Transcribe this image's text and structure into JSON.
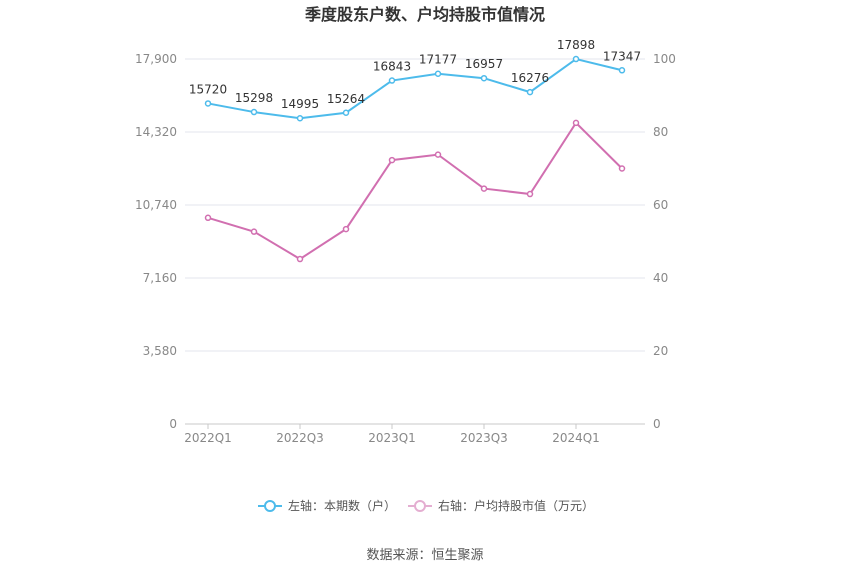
{
  "chart_data": {
    "type": "line",
    "title": "季度股东户数、户均持股市值情况",
    "x": [
      "2022Q1",
      "2022Q2",
      "2022Q3",
      "2022Q4",
      "2023Q1",
      "2023Q2",
      "2023Q3",
      "2023Q4",
      "2024Q1",
      "2024Q2"
    ],
    "x_tick_labels": [
      "2022Q1",
      "2022Q3",
      "2023Q1",
      "2023Q3",
      "2024Q1"
    ],
    "left_axis": {
      "ylim": [
        0,
        17900
      ],
      "ticks": [
        "0",
        "3,580",
        "7,160",
        "10,740",
        "14,320",
        "17,900"
      ]
    },
    "right_axis": {
      "ylim": [
        0,
        100
      ],
      "ticks": [
        "0",
        "20",
        "40",
        "60",
        "80",
        "100"
      ]
    },
    "series": [
      {
        "name": "左轴：本期数（户）",
        "axis": "left",
        "color": "#4dbbeb",
        "values": [
          15720,
          15298,
          14995,
          15264,
          16843,
          17177,
          16957,
          16276,
          17898,
          17347
        ],
        "labels": [
          "15720",
          "15298",
          "14995",
          "15264",
          "16843",
          "17177",
          "16957",
          "16276",
          "17898",
          "17347"
        ]
      },
      {
        "name": "右轴：户均持股市值（万元）",
        "axis": "right",
        "color": "#d16fb0",
        "values": [
          56.5,
          52.7,
          45.2,
          53.4,
          72.3,
          73.8,
          64.5,
          63.0,
          82.5,
          70.0
        ]
      }
    ],
    "grid": true,
    "legend": "bottom-center",
    "source": "数据来源：恒生聚源"
  }
}
